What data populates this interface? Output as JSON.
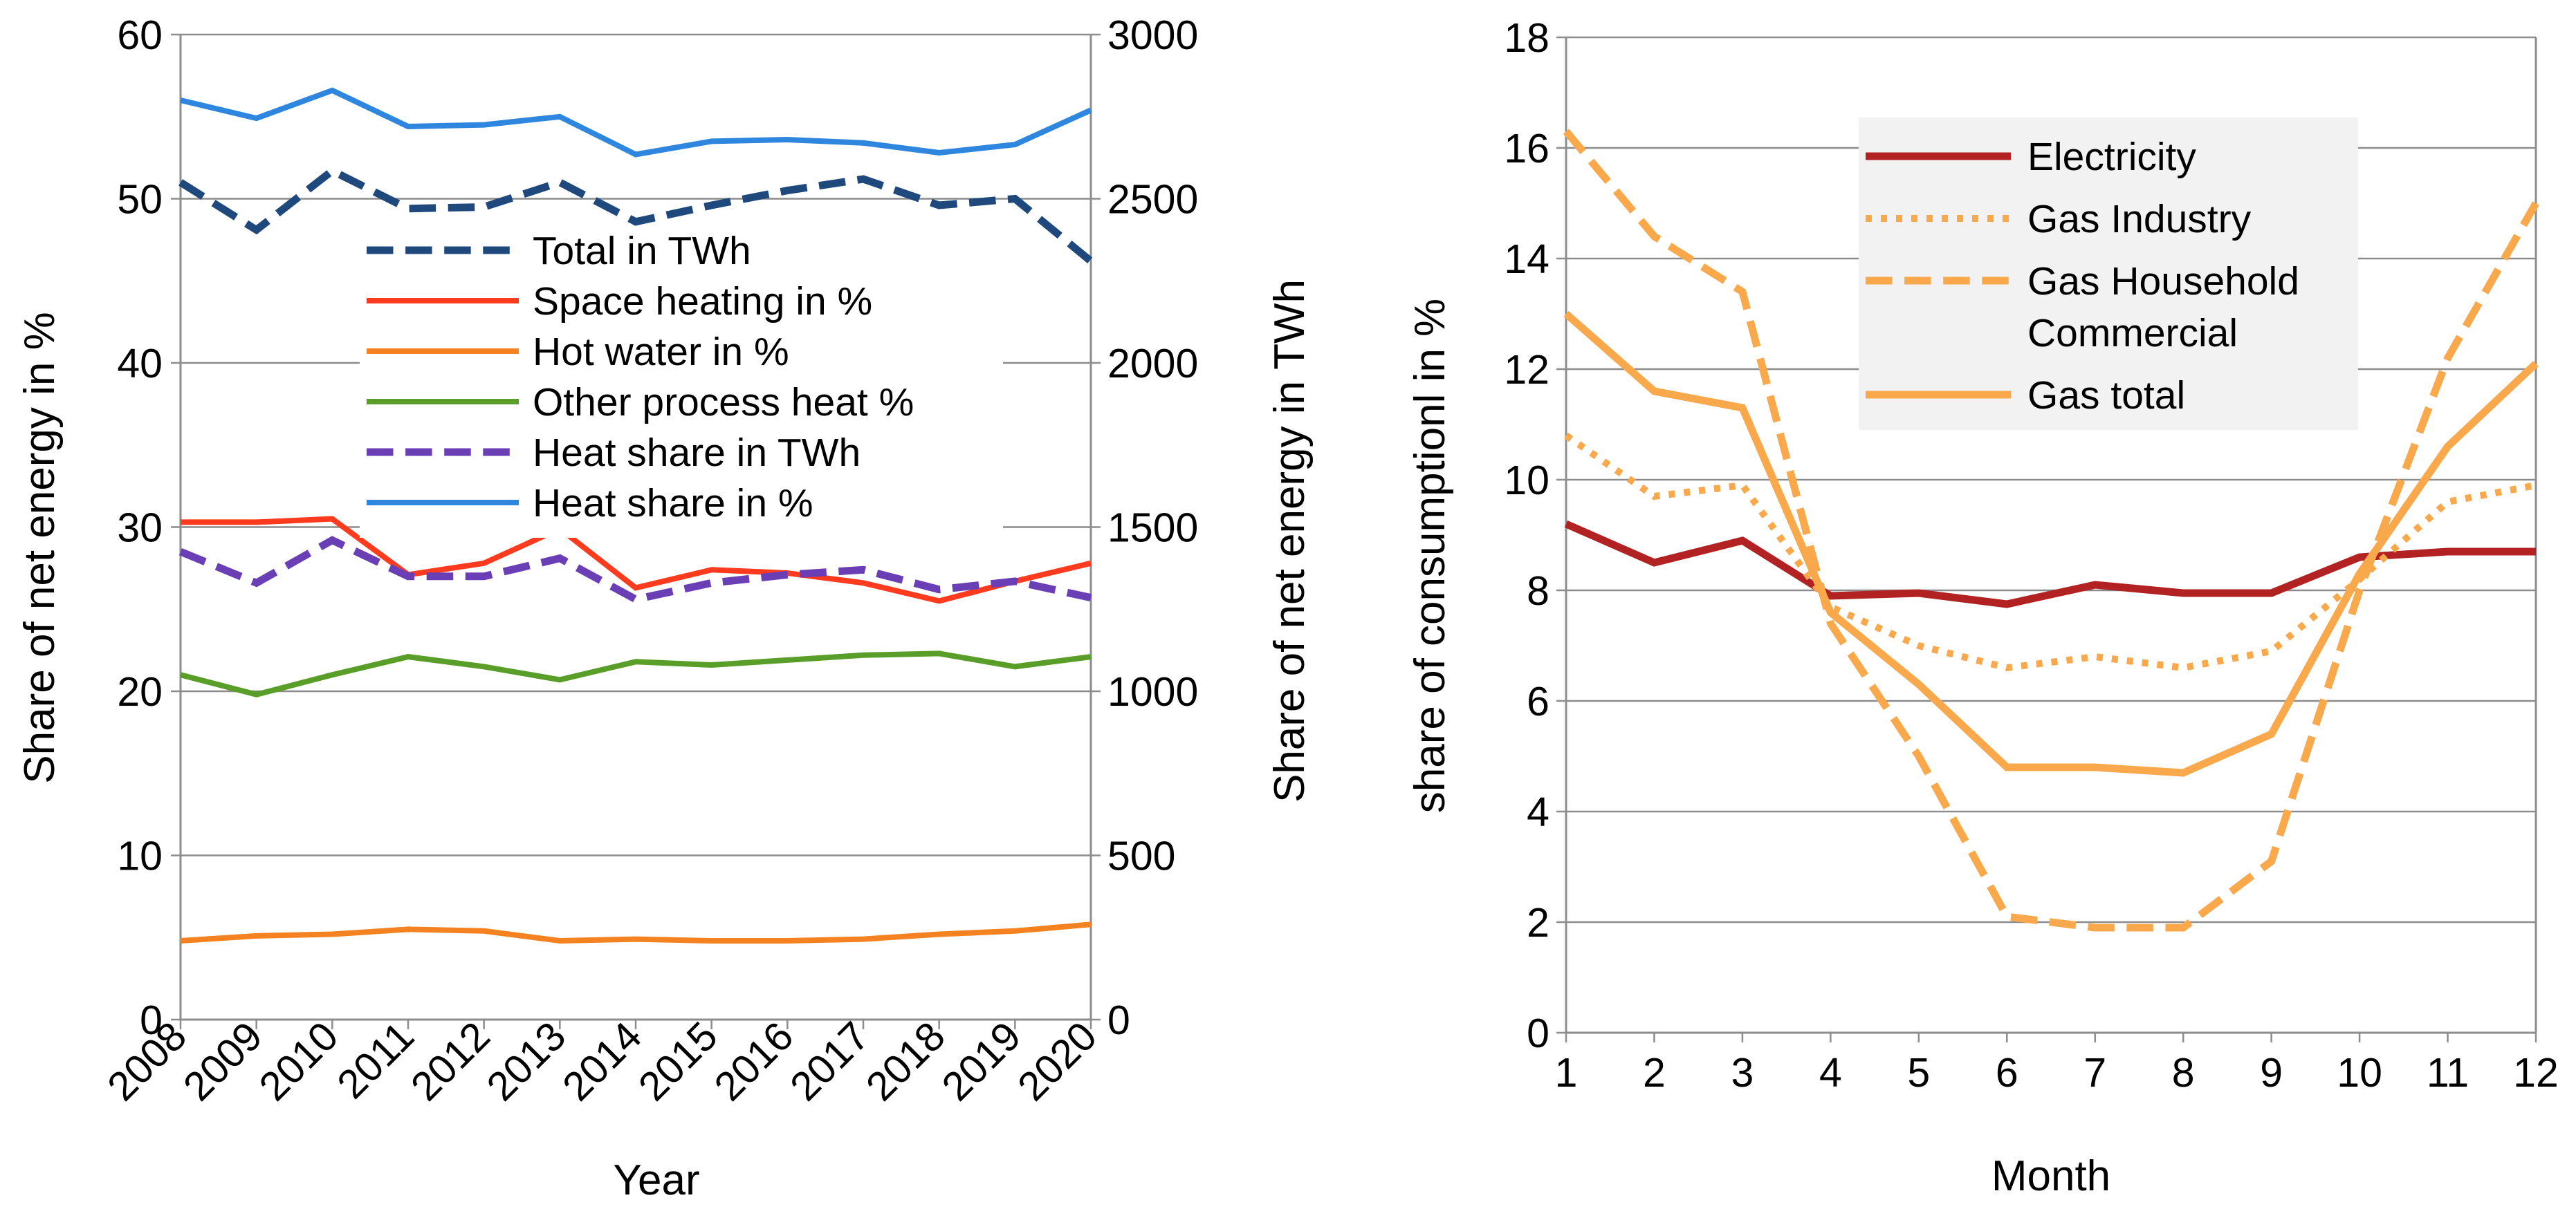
{
  "chart_data": [
    {
      "type": "line",
      "xlabel": "Year",
      "ylabel": "Share of net energy in %",
      "y2label": "Share of net energy in TWh",
      "categories": [
        "2008",
        "2009",
        "2010",
        "2011",
        "2012",
        "2013",
        "2014",
        "2015",
        "2016",
        "2017",
        "2018",
        "2019",
        "2020"
      ],
      "ylim": [
        0,
        60
      ],
      "y2lim": [
        0,
        3000
      ],
      "yticks": [
        "0",
        "10",
        "20",
        "30",
        "40",
        "50",
        "60"
      ],
      "y2ticks": [
        "0",
        "500",
        "1000",
        "1500",
        "2000",
        "2500",
        "3000"
      ],
      "grid": true,
      "legend_position": "center",
      "series": [
        {
          "name": "Total in TWh",
          "axis": "right",
          "color": "#1f497d",
          "dash": "dashed",
          "values": [
            2550,
            2405,
            2585,
            2470,
            2475,
            2550,
            2430,
            2480,
            2525,
            2560,
            2480,
            2500,
            2310
          ]
        },
        {
          "name": "Space heating in %",
          "axis": "left",
          "color": "#ff3b1f",
          "dash": "solid",
          "values": [
            30.3,
            30.3,
            30.5,
            27.1,
            27.8,
            29.9,
            26.3,
            27.4,
            27.2,
            26.6,
            25.5,
            26.7,
            27.8
          ]
        },
        {
          "name": "Hot water in %",
          "axis": "left",
          "color": "#f58220",
          "dash": "solid",
          "values": [
            4.8,
            5.1,
            5.2,
            5.5,
            5.4,
            4.8,
            4.9,
            4.8,
            4.8,
            4.9,
            5.2,
            5.4,
            5.8
          ]
        },
        {
          "name": "Other process heat %",
          "axis": "left",
          "color": "#5a9e2a",
          "dash": "solid",
          "values": [
            21.0,
            19.8,
            21.0,
            22.1,
            21.5,
            20.7,
            21.8,
            21.6,
            21.9,
            22.2,
            22.3,
            21.5,
            22.1
          ]
        },
        {
          "name": "Heat share in TWh",
          "axis": "right",
          "color": "#6a3fb5",
          "dash": "dashed",
          "values": [
            1425,
            1330,
            1460,
            1350,
            1350,
            1405,
            1280,
            1330,
            1355,
            1370,
            1310,
            1335,
            1285
          ]
        },
        {
          "name": "Heat share in %",
          "axis": "left",
          "color": "#2e86de",
          "dash": "solid",
          "values": [
            56.0,
            54.9,
            56.6,
            54.4,
            54.5,
            55.0,
            52.7,
            53.5,
            53.6,
            53.4,
            52.8,
            53.3,
            55.4
          ]
        }
      ]
    },
    {
      "type": "line",
      "xlabel": "Month",
      "ylabel": "share of consumptionl in %",
      "categories": [
        "1",
        "2",
        "3",
        "4",
        "5",
        "6",
        "7",
        "8",
        "9",
        "10",
        "11",
        "12"
      ],
      "ylim": [
        0,
        18
      ],
      "yticks": [
        "0",
        "2",
        "4",
        "6",
        "8",
        "10",
        "12",
        "14",
        "16",
        "18"
      ],
      "grid": true,
      "legend_position": "top-right",
      "series": [
        {
          "name": "Electricity",
          "color": "#b22222",
          "dash": "solid",
          "values": [
            9.2,
            8.5,
            8.9,
            7.9,
            7.95,
            7.75,
            8.1,
            7.95,
            7.95,
            8.6,
            8.7,
            8.7
          ]
        },
        {
          "name": "Gas Industry",
          "color": "#f9a94b",
          "dash": "dotted",
          "values": [
            10.8,
            9.7,
            9.9,
            7.7,
            7.0,
            6.6,
            6.8,
            6.6,
            6.9,
            8.2,
            9.6,
            9.9
          ]
        },
        {
          "name": "Gas Household Commercial",
          "legend_lines": [
            "Gas Household",
            "Commercial"
          ],
          "color": "#f9a94b",
          "dash": "dashed",
          "values": [
            16.3,
            14.4,
            13.4,
            7.4,
            5.0,
            2.1,
            1.9,
            1.9,
            3.1,
            8.0,
            12.2,
            15.0
          ]
        },
        {
          "name": "Gas total",
          "color": "#f9a94b",
          "dash": "solid",
          "values": [
            13.0,
            11.6,
            11.3,
            7.6,
            6.3,
            4.8,
            4.8,
            4.7,
            5.4,
            8.3,
            10.6,
            12.1
          ]
        }
      ]
    }
  ]
}
